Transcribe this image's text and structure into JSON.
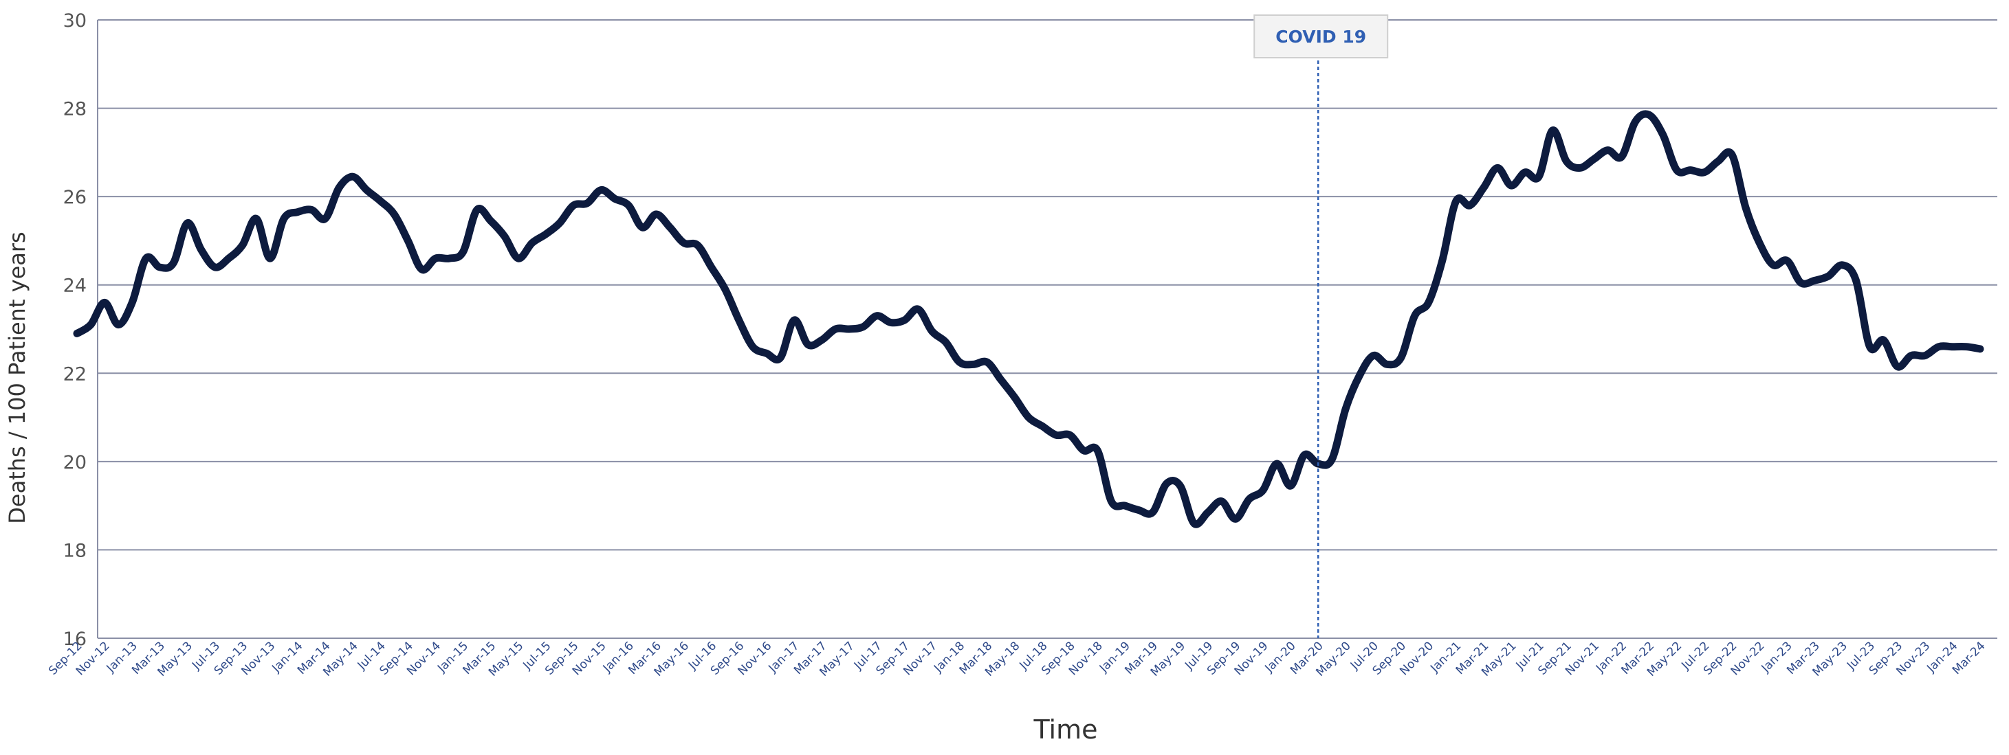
{
  "chart_data": {
    "type": "line",
    "title": "",
    "xlabel": "Time",
    "ylabel": "Deaths / 100 Patient years",
    "ylim": [
      16,
      30
    ],
    "yticks": [
      16,
      18,
      20,
      22,
      24,
      26,
      28,
      30
    ],
    "grid": true,
    "legend": "none",
    "x_tick_labels": [
      "Sep-12",
      "Nov-12",
      "Jan-13",
      "Mar-13",
      "May-13",
      "Jul-13",
      "Sep-13",
      "Nov-13",
      "Jan-14",
      "Mar-14",
      "May-14",
      "Jul-14",
      "Sep-14",
      "Nov-14",
      "Jan-15",
      "Mar-15",
      "May-15",
      "Jul-15",
      "Sep-15",
      "Nov-15",
      "Jan-16",
      "Mar-16",
      "May-16",
      "Jul-16",
      "Sep-16",
      "Nov-16",
      "Jan-17",
      "Mar-17",
      "May-17",
      "Jul-17",
      "Sep-17",
      "Nov-17",
      "Jan-18",
      "Mar-18",
      "May-18",
      "Jul-18",
      "Sep-18",
      "Nov-18",
      "Jan-19",
      "Mar-19",
      "May-19",
      "Jul-19",
      "Sep-19",
      "Nov-19",
      "Jan-20",
      "Mar-20",
      "May-20",
      "Jul-20",
      "Sep-20",
      "Nov-20",
      "Jan-21",
      "Mar-21",
      "May-21",
      "Jul-21",
      "Sep-21",
      "Nov-21",
      "Jan-22",
      "Mar-22",
      "May-22",
      "Jul-22",
      "Sep-22",
      "Nov-22",
      "Jan-23",
      "Mar-23",
      "May-23",
      "Jul-23",
      "Sep-23",
      "Nov-23",
      "Jan-24",
      "Mar-24"
    ],
    "series": [
      {
        "color": "#0d1b3e",
        "points": [
          [
            "Sep-12",
            22.9
          ],
          [
            "Oct-12",
            23.1
          ],
          [
            "Nov-12",
            23.6
          ],
          [
            "Dec-12",
            23.1
          ],
          [
            "Jan-13",
            23.6
          ],
          [
            "Feb-13",
            24.6
          ],
          [
            "Mar-13",
            24.4
          ],
          [
            "Apr-13",
            24.5
          ],
          [
            "May-13",
            25.4
          ],
          [
            "Jun-13",
            24.8
          ],
          [
            "Jul-13",
            24.4
          ],
          [
            "Aug-13",
            24.6
          ],
          [
            "Sep-13",
            24.9
          ],
          [
            "Oct-13",
            25.5
          ],
          [
            "Nov-13",
            24.6
          ],
          [
            "Dec-13",
            25.5
          ],
          [
            "Jan-14",
            25.65
          ],
          [
            "Feb-14",
            25.7
          ],
          [
            "Mar-14",
            25.5
          ],
          [
            "Apr-14",
            26.2
          ],
          [
            "May-14",
            26.45
          ],
          [
            "Jun-14",
            26.15
          ],
          [
            "Jul-14",
            25.9
          ],
          [
            "Aug-14",
            25.6
          ],
          [
            "Sep-14",
            25.0
          ],
          [
            "Oct-14",
            24.35
          ],
          [
            "Nov-14",
            24.6
          ],
          [
            "Dec-14",
            24.6
          ],
          [
            "Jan-15",
            24.75
          ],
          [
            "Feb-15",
            25.7
          ],
          [
            "Mar-15",
            25.45
          ],
          [
            "Apr-15",
            25.1
          ],
          [
            "May-15",
            24.6
          ],
          [
            "Jun-15",
            24.95
          ],
          [
            "Jul-15",
            25.15
          ],
          [
            "Aug-15",
            25.4
          ],
          [
            "Sep-15",
            25.8
          ],
          [
            "Oct-15",
            25.85
          ],
          [
            "Nov-15",
            26.15
          ],
          [
            "Dec-15",
            25.95
          ],
          [
            "Jan-16",
            25.8
          ],
          [
            "Feb-16",
            25.3
          ],
          [
            "Mar-16",
            25.6
          ],
          [
            "Apr-16",
            25.3
          ],
          [
            "May-16",
            24.95
          ],
          [
            "Jun-16",
            24.9
          ],
          [
            "Jul-16",
            24.4
          ],
          [
            "Aug-16",
            23.9
          ],
          [
            "Sep-16",
            23.2
          ],
          [
            "Oct-16",
            22.6
          ],
          [
            "Nov-16",
            22.45
          ],
          [
            "Dec-16",
            22.35
          ],
          [
            "Jan-17",
            23.2
          ],
          [
            "Feb-17",
            22.65
          ],
          [
            "Mar-17",
            22.75
          ],
          [
            "Apr-17",
            23.0
          ],
          [
            "May-17",
            23.0
          ],
          [
            "Jun-17",
            23.05
          ],
          [
            "Jul-17",
            23.3
          ],
          [
            "Aug-17",
            23.15
          ],
          [
            "Sep-17",
            23.2
          ],
          [
            "Oct-17",
            23.45
          ],
          [
            "Nov-17",
            22.95
          ],
          [
            "Dec-17",
            22.7
          ],
          [
            "Jan-18",
            22.25
          ],
          [
            "Feb-18",
            22.2
          ],
          [
            "Mar-18",
            22.25
          ],
          [
            "Apr-18",
            21.85
          ],
          [
            "May-18",
            21.45
          ],
          [
            "Jun-18",
            21.0
          ],
          [
            "Jul-18",
            20.8
          ],
          [
            "Aug-18",
            20.6
          ],
          [
            "Sep-18",
            20.6
          ],
          [
            "Oct-18",
            20.25
          ],
          [
            "Nov-18",
            20.25
          ],
          [
            "Dec-18",
            19.1
          ],
          [
            "Jan-19",
            19.0
          ],
          [
            "Feb-19",
            18.9
          ],
          [
            "Mar-19",
            18.85
          ],
          [
            "Apr-19",
            19.5
          ],
          [
            "May-19",
            19.45
          ],
          [
            "Jun-19",
            18.6
          ],
          [
            "Jul-19",
            18.85
          ],
          [
            "Aug-19",
            19.1
          ],
          [
            "Sep-19",
            18.7
          ],
          [
            "Oct-19",
            19.15
          ],
          [
            "Nov-19",
            19.35
          ],
          [
            "Dec-19",
            19.95
          ],
          [
            "Jan-20",
            19.45
          ],
          [
            "Feb-20",
            20.15
          ],
          [
            "Mar-20",
            19.95
          ],
          [
            "Apr-20",
            20.05
          ],
          [
            "May-20",
            21.2
          ],
          [
            "Jun-20",
            21.95
          ],
          [
            "Jul-20",
            22.4
          ],
          [
            "Aug-20",
            22.2
          ],
          [
            "Sep-20",
            22.35
          ],
          [
            "Oct-20",
            23.3
          ],
          [
            "Nov-20",
            23.6
          ],
          [
            "Dec-20",
            24.55
          ],
          [
            "Jan-21",
            25.9
          ],
          [
            "Feb-21",
            25.8
          ],
          [
            "Mar-21",
            26.2
          ],
          [
            "Apr-21",
            26.65
          ],
          [
            "May-21",
            26.25
          ],
          [
            "Jun-21",
            26.55
          ],
          [
            "Jul-21",
            26.45
          ],
          [
            "Aug-21",
            27.5
          ],
          [
            "Sep-21",
            26.8
          ],
          [
            "Oct-21",
            26.65
          ],
          [
            "Nov-21",
            26.85
          ],
          [
            "Dec-21",
            27.05
          ],
          [
            "Jan-22",
            26.9
          ],
          [
            "Feb-22",
            27.7
          ],
          [
            "Mar-22",
            27.85
          ],
          [
            "Apr-22",
            27.4
          ],
          [
            "May-22",
            26.6
          ],
          [
            "Jun-22",
            26.6
          ],
          [
            "Jul-22",
            26.55
          ],
          [
            "Aug-22",
            26.8
          ],
          [
            "Sep-22",
            26.95
          ],
          [
            "Oct-22",
            25.75
          ],
          [
            "Nov-22",
            24.95
          ],
          [
            "Dec-22",
            24.45
          ],
          [
            "Jan-23",
            24.55
          ],
          [
            "Feb-23",
            24.05
          ],
          [
            "Mar-23",
            24.1
          ],
          [
            "Apr-23",
            24.2
          ],
          [
            "May-23",
            24.45
          ],
          [
            "Jun-23",
            24.1
          ],
          [
            "Jul-23",
            22.6
          ],
          [
            "Aug-23",
            22.75
          ],
          [
            "Sep-23",
            22.15
          ],
          [
            "Oct-23",
            22.4
          ],
          [
            "Nov-23",
            22.4
          ],
          [
            "Dec-23",
            22.6
          ],
          [
            "Jan-24",
            22.6
          ],
          [
            "Feb-24",
            22.6
          ],
          [
            "Mar-24",
            22.55
          ]
        ]
      }
    ],
    "annotations": [
      {
        "text": "COVID 19",
        "x": "Mar-20",
        "style": "dashed-vertical-line",
        "color": "#2f5fb3"
      }
    ]
  }
}
